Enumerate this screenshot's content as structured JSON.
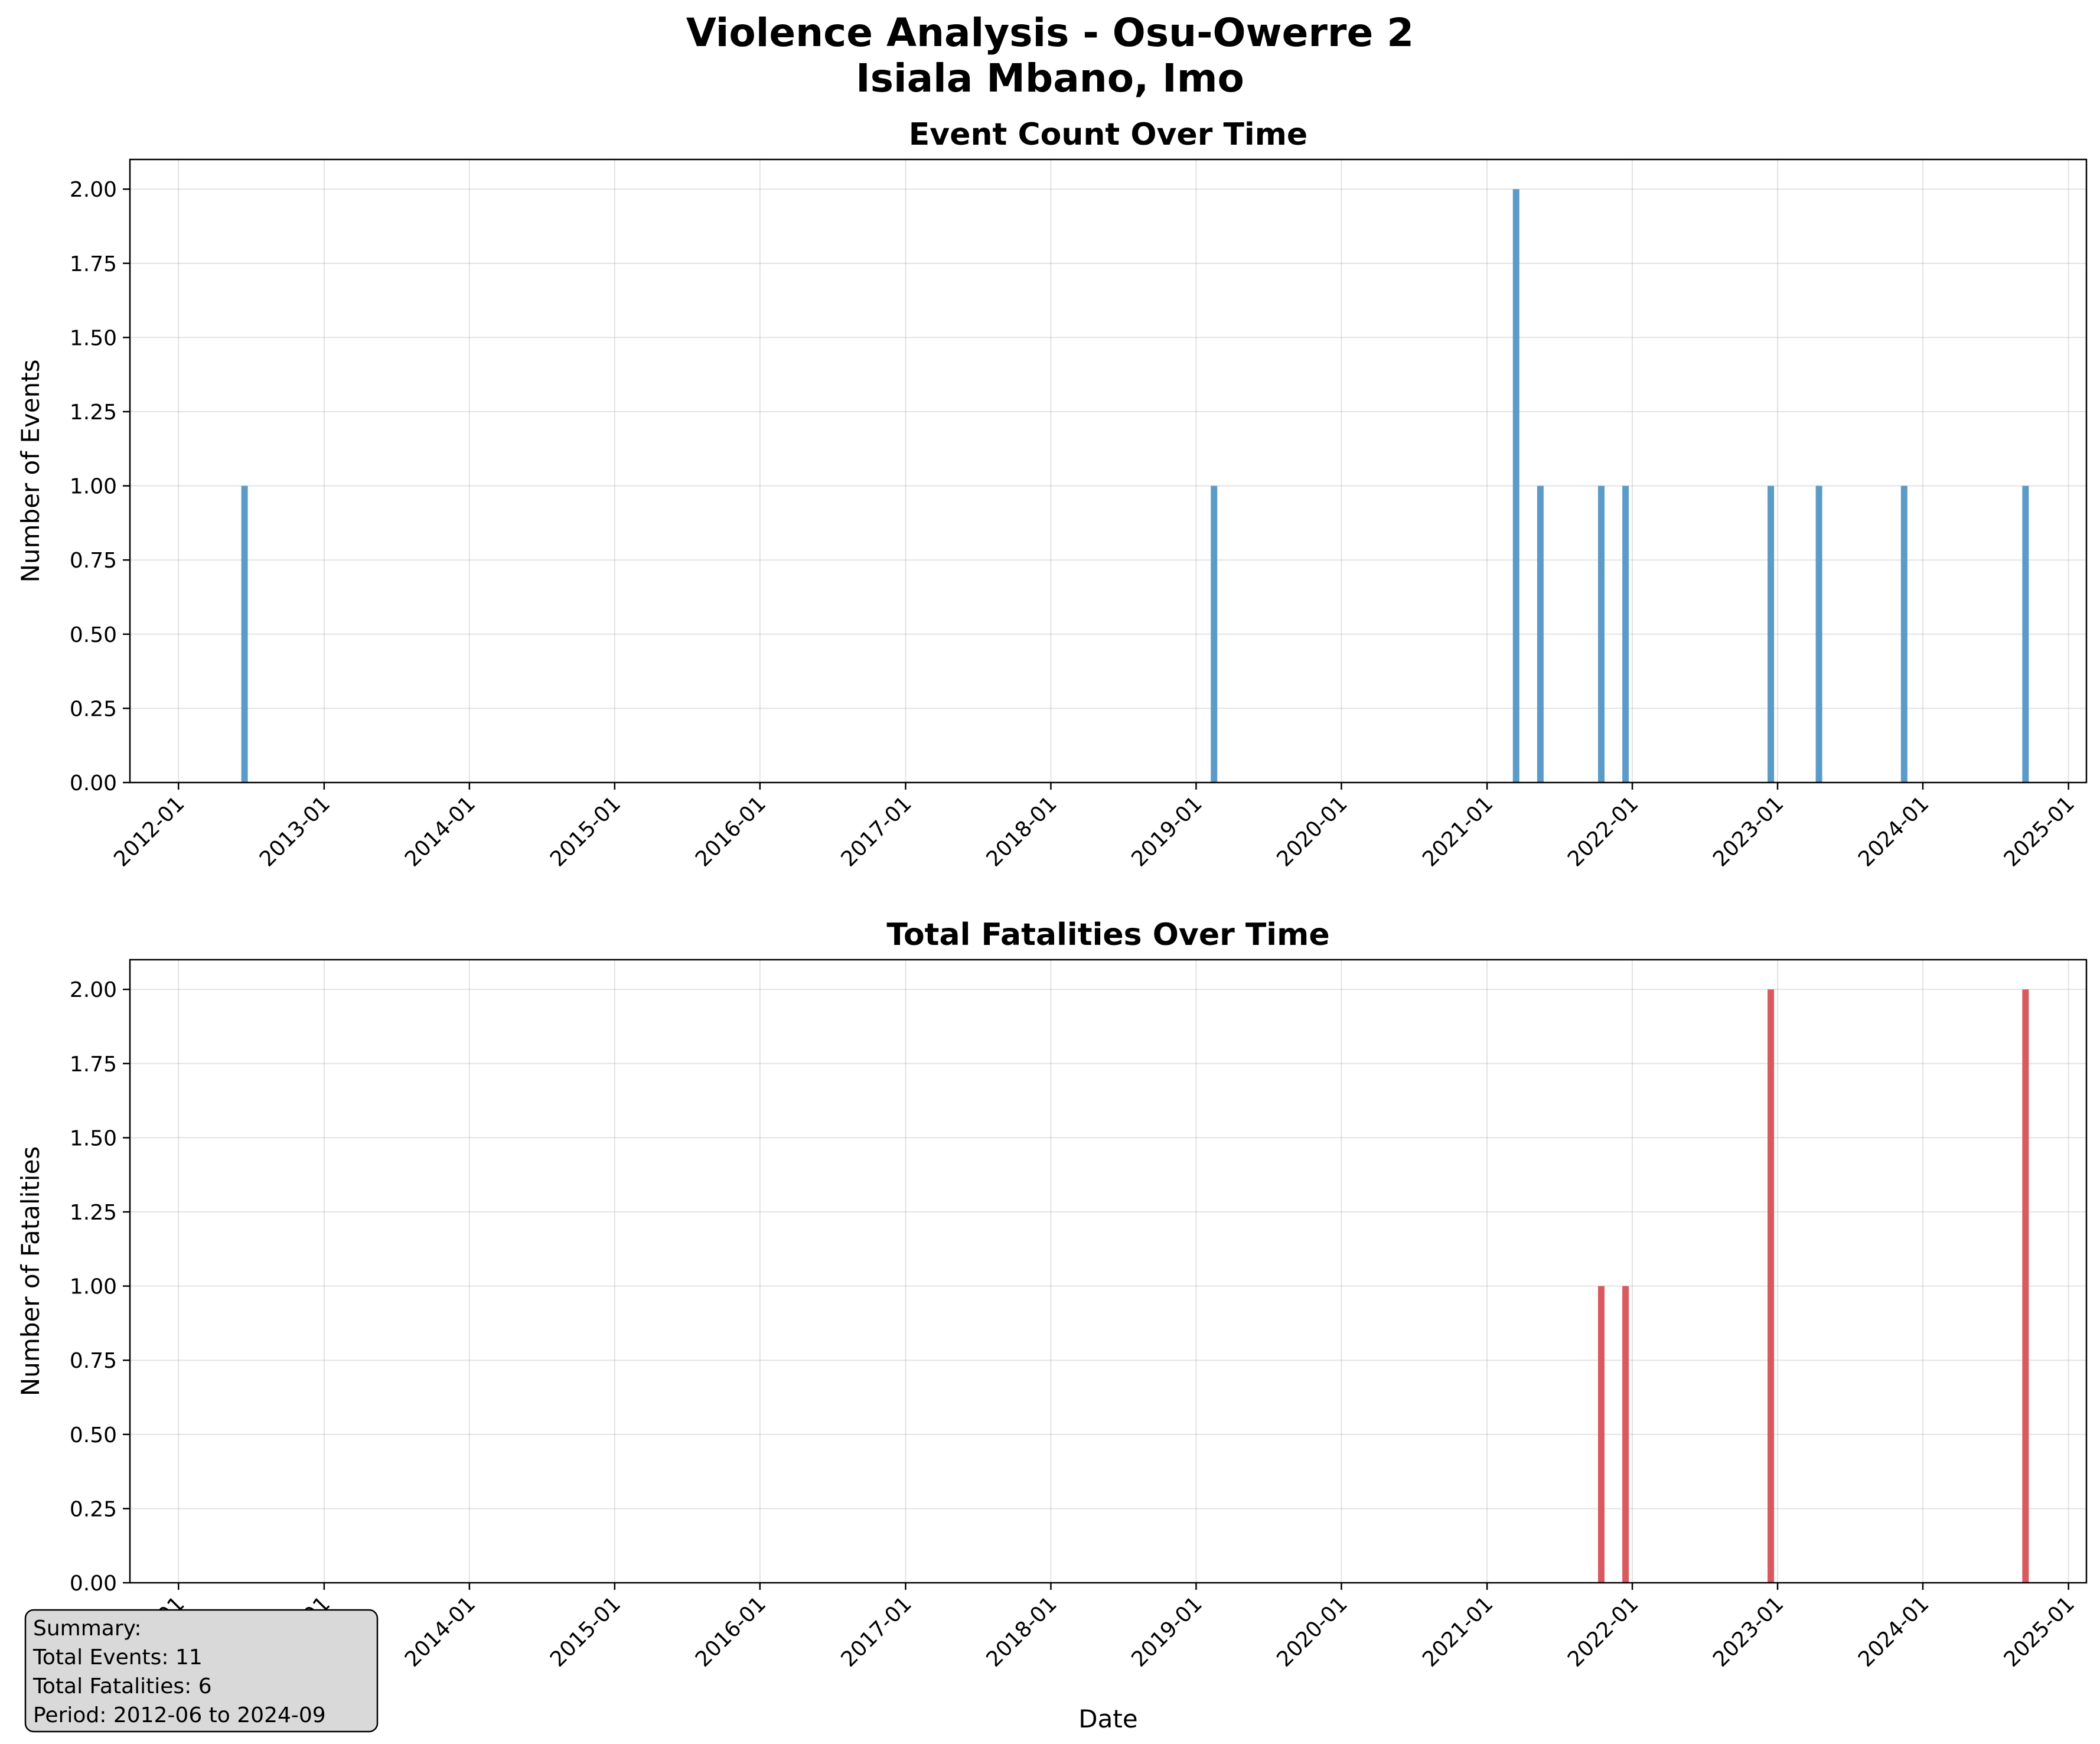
{
  "figure": {
    "title_line1": "Violence Analysis - Osu-Owerre 2",
    "title_line2": "Isiala Mbano, Imo"
  },
  "summary": {
    "line1": "Summary:",
    "line2": "Total Events: 11",
    "line3": "Total Fatalities: 6",
    "line4": "Period: 2012-06 to 2024-09"
  },
  "chart_data": [
    {
      "type": "bar",
      "title": "Event Count Over Time",
      "xlabel": "",
      "ylabel": "Number of Events",
      "color": "#5b9bc8",
      "x": [
        "2012-06",
        "2019-02",
        "2021-03",
        "2021-05",
        "2021-10",
        "2021-12",
        "2022-12",
        "2023-04",
        "2023-11",
        "2024-09"
      ],
      "values": [
        1,
        1,
        2,
        1,
        1,
        1,
        1,
        1,
        1,
        1
      ],
      "ylim": [
        0,
        2.1
      ],
      "yticks": [
        "0.00",
        "0.25",
        "0.50",
        "0.75",
        "1.00",
        "1.25",
        "1.50",
        "1.75",
        "2.00"
      ],
      "xticks": [
        "2012-01",
        "2013-01",
        "2014-01",
        "2015-01",
        "2016-01",
        "2017-01",
        "2018-01",
        "2019-01",
        "2020-01",
        "2021-01",
        "2022-01",
        "2023-01",
        "2024-01",
        "2025-01"
      ],
      "grid": true
    },
    {
      "type": "bar",
      "title": "Total Fatalities Over Time",
      "xlabel": "Date",
      "ylabel": "Number of Fatalities",
      "color": "#d9595e",
      "x": [
        "2021-10",
        "2021-12",
        "2022-12",
        "2024-09"
      ],
      "values": [
        1,
        1,
        2,
        2
      ],
      "ylim": [
        0,
        2.1
      ],
      "yticks": [
        "0.00",
        "0.25",
        "0.50",
        "0.75",
        "1.00",
        "1.25",
        "1.50",
        "1.75",
        "2.00"
      ],
      "xticks": [
        "2012-01",
        "2013-01",
        "2014-01",
        "2015-01",
        "2016-01",
        "2017-01",
        "2018-01",
        "2019-01",
        "2020-01",
        "2021-01",
        "2022-01",
        "2023-01",
        "2024-01",
        "2025-01"
      ],
      "grid": true
    }
  ]
}
